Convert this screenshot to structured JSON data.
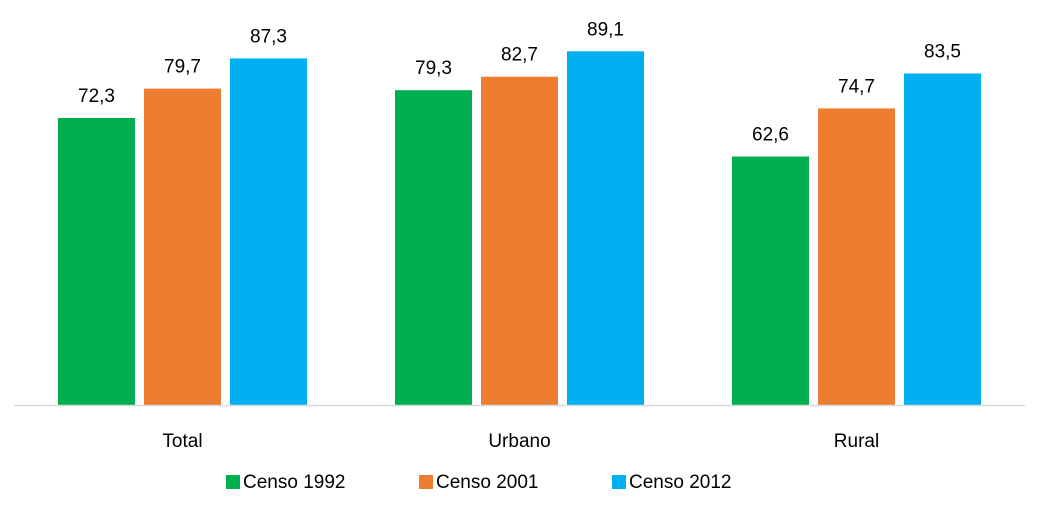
{
  "chart_data": {
    "type": "bar",
    "categories": [
      "Total",
      "Urbano",
      "Rural"
    ],
    "series": [
      {
        "name": "Censo 1992",
        "values": [
          72.3,
          79.3,
          62.6
        ],
        "value_labels": [
          "72,3",
          "79,3",
          "62,6"
        ],
        "color": "#00B050"
      },
      {
        "name": "Censo 2001",
        "values": [
          79.7,
          82.7,
          74.7
        ],
        "value_labels": [
          "79,7",
          "82,7",
          "74,7"
        ],
        "color": "#ED7D31"
      },
      {
        "name": "Censo 2012",
        "values": [
          87.3,
          89.1,
          83.5
        ],
        "value_labels": [
          "87,3",
          "89,1",
          "83,5"
        ],
        "color": "#00B0F0"
      }
    ],
    "title": "",
    "xlabel": "",
    "ylabel": "",
    "ylim": [
      0,
      100
    ],
    "grid": false,
    "legend_position": "bottom",
    "axis_color": "#D9D9D9"
  }
}
